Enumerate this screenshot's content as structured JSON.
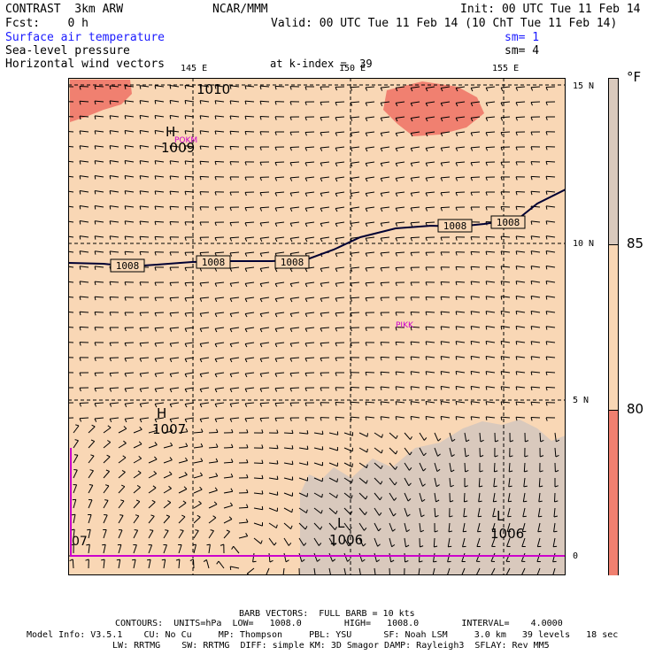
{
  "header": {
    "model": "CONTRAST  3km ARW",
    "center": "NCAR/MMM",
    "init": "Init: 00 UTC Tue 11 Feb 14",
    "fcst": "Fcst:    0 h",
    "valid": "Valid: 00 UTC Tue 11 Feb 14 (10 ChT Tue 11 Feb 14)",
    "field1": "Surface air temperature",
    "sm1": "sm= 1",
    "field2": "Sea-level pressure",
    "sm2": "sm= 4",
    "field3": "Horizontal wind vectors",
    "kindex": "at k-index =  39"
  },
  "map": {
    "lon_labels": [
      "145 E",
      "150 E",
      "155 E"
    ],
    "lat_labels": [
      "15 N",
      "10 N",
      "5 N",
      "0"
    ],
    "isobar_labels": [
      "1008",
      "1008",
      "1008",
      "1008",
      "1008"
    ],
    "top_label": "1010",
    "highs": [
      {
        "letter": "H",
        "value": "1009",
        "station": "POKM"
      },
      {
        "letter": "H",
        "value": "1007"
      }
    ],
    "lows": [
      {
        "letter": "L",
        "value": "1006"
      },
      {
        "letter": "L",
        "value": "1006"
      }
    ],
    "station_pikk": "PIKK",
    "edge_label": "07",
    "colors": {
      "warm": "#f9d7b5",
      "hot": "#f08070",
      "cool": "#d9c9bd",
      "grid": "#000000",
      "isobar": "#000033",
      "magenta": "#cc00cc"
    }
  },
  "colorbar": {
    "unit": "°F",
    "ticks": [
      "85",
      "80"
    ],
    "colors": [
      "#d9c9bd",
      "#f9d7b5",
      "#f08070"
    ]
  },
  "footer": {
    "barb": "BARB VECTORS:  FULL BARB = 10 kts",
    "contours": "CONTOURS:  UNITS=hPa  LOW=   1008.0        HIGH=   1008.0        INTERVAL=    4.0000",
    "model_info": "Model Info: V3.5.1    CU: No Cu     MP: Thompson     PBL: YSU      SF: Noah LSM     3.0 km   39 levels   18 sec",
    "model_info2": "LW: RRTMG    SW: RRTMG  DIFF: simple KM: 3D Smagor DAMP: Rayleigh3  SFLAY: Rev MM5"
  }
}
